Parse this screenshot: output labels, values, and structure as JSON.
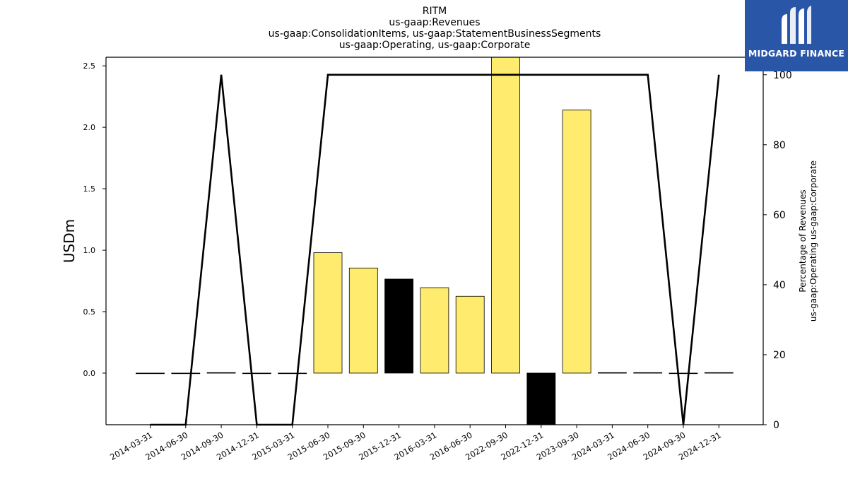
{
  "chart_data": {
    "type": "bar",
    "title": [
      "RITM",
      "us-gaap:Revenues",
      "us-gaap:ConsolidationItems, us-gaap:StatementBusinessSegments",
      "us-gaap:Operating, us-gaap:Corporate"
    ],
    "categories": [
      "2014-03-31",
      "2014-06-30",
      "2014-09-30",
      "2014-12-31",
      "2015-03-31",
      "2015-06-30",
      "2015-09-30",
      "2015-12-31",
      "2016-03-31",
      "2016-06-30",
      "2022-09-30",
      "2022-12-31",
      "2023-09-30",
      "2024-03-31",
      "2024-06-30",
      "2024-09-30",
      "2024-12-31"
    ],
    "ylabel": "USDm",
    "y2label": [
      "Percentage of Revenues",
      "us-gaap:Operating us-gaap:Corporate"
    ],
    "ylim": [
      -0.42,
      2.57
    ],
    "y2lim": [
      0,
      105
    ],
    "yticks": [
      "0.0",
      "0.5",
      "1.0",
      "1.5",
      "2.0",
      "2.5"
    ],
    "y2ticks": [
      "0",
      "20",
      "40",
      "60",
      "80",
      "100"
    ],
    "series": [
      {
        "type": "bar",
        "values": [
          0.0,
          0.0,
          0.004,
          0.0,
          0.0,
          0.98,
          0.855,
          0.765,
          0.695,
          0.625,
          2.6,
          -0.43,
          2.14,
          0.004,
          0.004,
          0.0,
          0.004
        ],
        "colors": [
          "#ffec6e",
          "#ffec6e",
          "#ffec6e",
          "#ffec6e",
          "#ffec6e",
          "#ffec6e",
          "#ffec6e",
          "#000000",
          "#ffec6e",
          "#ffec6e",
          "#ffec6e",
          "#000000",
          "#ffec6e",
          "#ffec6e",
          "#ffec6e",
          "#ffec6e",
          "#ffec6e"
        ]
      },
      {
        "type": "line",
        "axis": "right",
        "color": "#000000",
        "values": [
          0,
          0,
          100,
          0,
          0,
          100,
          100,
          100,
          100,
          100,
          100,
          100,
          100,
          100,
          100,
          0,
          100
        ]
      }
    ],
    "grid": false
  },
  "logo": {
    "text": "MIDGARD FINANCE",
    "color": "#2a56a8"
  }
}
